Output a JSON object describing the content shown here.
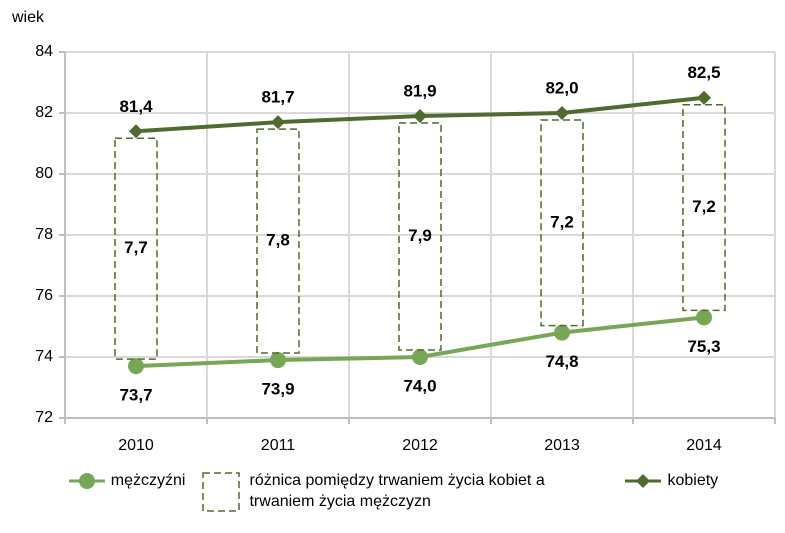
{
  "chart_data": {
    "type": "line",
    "y_label": "wiek",
    "categories": [
      "2010",
      "2011",
      "2012",
      "2013",
      "2014"
    ],
    "ylim": [
      72,
      84
    ],
    "yticks": [
      72,
      74,
      76,
      78,
      80,
      82,
      84
    ],
    "grid": true,
    "legend": "bottom",
    "series": [
      {
        "name": "mężczyźni",
        "color": "#77a756",
        "marker": "circle",
        "values": [
          73.7,
          73.9,
          74.0,
          74.8,
          75.3
        ],
        "value_labels": [
          "73,7",
          "73,9",
          "74,0",
          "74,8",
          "75,3"
        ]
      },
      {
        "name": "różnica pomiędzy trwaniem życia kobiet a trwaniem życia mężczyzn",
        "color": "#4e6b30",
        "style": "dashed-box",
        "values": [
          7.7,
          7.8,
          7.9,
          7.2,
          7.2
        ],
        "value_labels": [
          "7,7",
          "7,8",
          "7,9",
          "7,2",
          "7,2"
        ]
      },
      {
        "name": "kobiety",
        "color": "#4e6b30",
        "marker": "diamond",
        "values": [
          81.4,
          81.7,
          81.9,
          82.0,
          82.5
        ],
        "value_labels": [
          "81,4",
          "81,7",
          "81,9",
          "82,0",
          "82,5"
        ]
      }
    ]
  }
}
